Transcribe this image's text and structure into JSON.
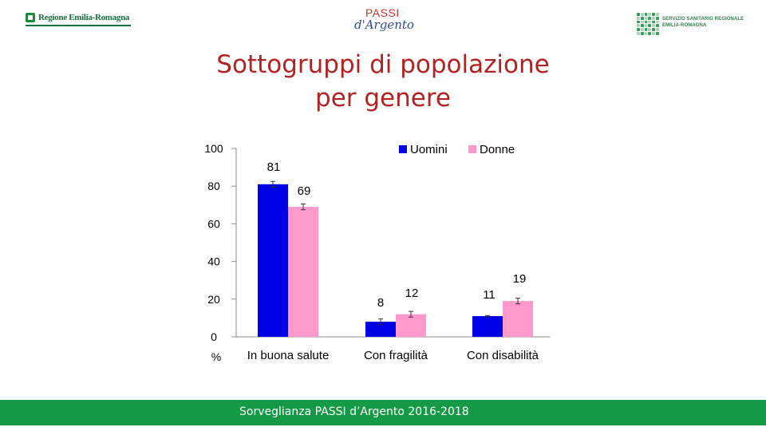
{
  "header": {
    "logo_left_text": "Regione Emilia-Romagna",
    "logo_center_passi": "PASSI",
    "logo_center_argento": "d'Argento",
    "logo_right_line1": "SERVIZIO SANITARIO REGIONALE",
    "logo_right_line2": "EMILIA-ROMAGNA"
  },
  "title_line1": "Sottogruppi di popolazione",
  "title_line2": "per genere",
  "footer_text": "Sorveglianza PASSI d’Argento 2016-2018",
  "colors": {
    "title": "#b22222",
    "footer": "#149a45",
    "uomini": "#0000e6",
    "donne": "#ff99cc"
  },
  "chart_data": {
    "type": "bar",
    "categories": [
      "In buona salute",
      "Con fragilità",
      "Con disabilità"
    ],
    "series": [
      {
        "name": "Uomini",
        "values": [
          81,
          8,
          11
        ],
        "errors": [
          1.5,
          1.5,
          0.3
        ]
      },
      {
        "name": "Donne",
        "values": [
          69,
          12,
          19
        ],
        "errors": [
          1.5,
          1.5,
          1.5
        ]
      }
    ],
    "data_labels": [
      [
        "81",
        "8",
        "11"
      ],
      [
        "69",
        "12",
        "19"
      ]
    ],
    "ylabel": "%",
    "ylim": [
      0,
      100
    ],
    "yticks": [
      0,
      20,
      40,
      60,
      80,
      100
    ],
    "grid": false,
    "legend": "top-right"
  }
}
